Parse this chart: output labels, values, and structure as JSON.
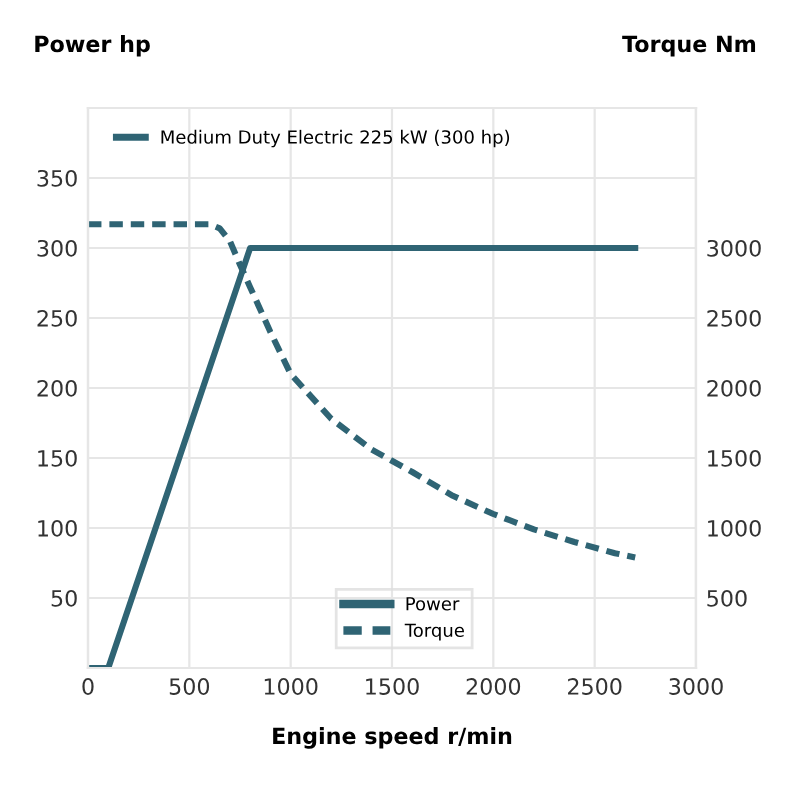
{
  "chart_data": {
    "type": "line",
    "xlabel": "Engine speed r/min",
    "ylabel": "Power hp",
    "y2label": "Torque Nm",
    "annotations": [
      "Medium Duty Electric 225 kW (300 hp)"
    ],
    "xlim": [
      0,
      3000
    ],
    "xticks": [
      0,
      500,
      1000,
      1500,
      2000,
      2500,
      3000
    ],
    "ylim": [
      0,
      400
    ],
    "yticks": [
      50,
      100,
      150,
      200,
      250,
      300,
      350
    ],
    "y2lim": [
      0,
      4000
    ],
    "y2ticks": [
      500,
      1000,
      1500,
      2000,
      2500,
      3000
    ],
    "grid": true,
    "legend": "bottom",
    "series": [
      {
        "name": "Power",
        "color": "#2f6474",
        "line_style": "solid",
        "x": [
          0,
          100,
          800,
          2700
        ],
        "values": [
          0,
          0,
          300,
          300
        ]
      },
      {
        "name": "Torque",
        "color": "#2f6474",
        "line_style": "dashed",
        "axis": "y2",
        "x": [
          0,
          600,
          650,
          700,
          750,
          800,
          900,
          1000,
          1200,
          1400,
          1600,
          1800,
          2000,
          2200,
          2400,
          2600,
          2700
        ],
        "values": [
          3170,
          3170,
          3140,
          3050,
          2880,
          2720,
          2400,
          2100,
          1780,
          1560,
          1400,
          1230,
          1100,
          990,
          900,
          820,
          790
        ]
      }
    ]
  }
}
